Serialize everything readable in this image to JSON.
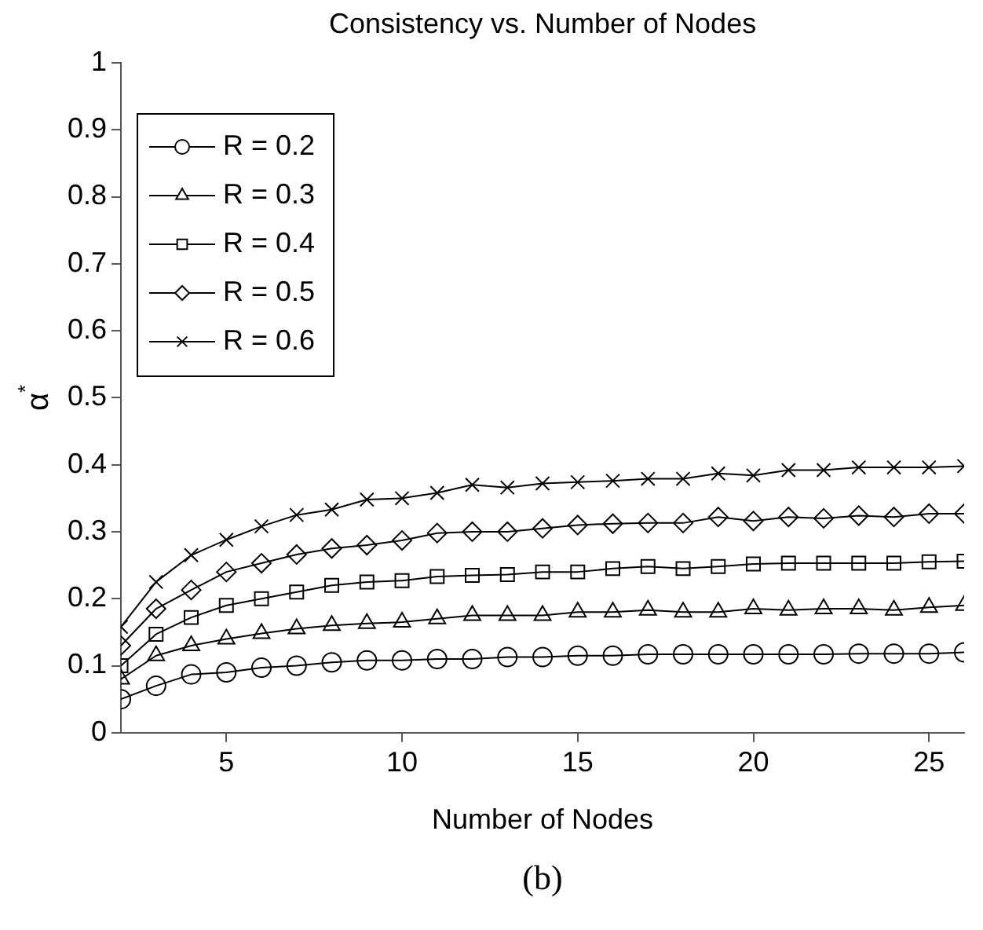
{
  "chart_data": {
    "type": "line",
    "title": "Consistency vs. Number of Nodes",
    "xlabel": "Number of Nodes",
    "ylabel": "α$^{*}$",
    "annotations": [
      "(b)"
    ],
    "x": [
      2,
      3,
      4,
      5,
      6,
      7,
      8,
      9,
      10,
      11,
      12,
      13,
      14,
      15,
      16,
      17,
      18,
      19,
      20,
      21,
      22,
      23,
      24,
      25,
      26
    ],
    "xlim": [
      2,
      26
    ],
    "xticks": [
      5,
      10,
      15,
      20,
      25
    ],
    "ylim": [
      0,
      1
    ],
    "yticks": [
      0,
      0.1,
      0.2,
      0.3,
      0.4,
      0.5,
      0.6,
      0.7,
      0.8,
      0.9,
      1
    ],
    "grid": false,
    "legend": "top left",
    "line_style": "solid",
    "series": [
      {
        "name": "R = 0.2",
        "color": "#000000",
        "marker": "circle",
        "values": [
          0.05,
          0.07,
          0.087,
          0.09,
          0.097,
          0.1,
          0.105,
          0.108,
          0.108,
          0.11,
          0.11,
          0.113,
          0.113,
          0.115,
          0.115,
          0.117,
          0.117,
          0.117,
          0.117,
          0.117,
          0.117,
          0.118,
          0.118,
          0.118,
          0.12
        ]
      },
      {
        "name": "R = 0.3",
        "color": "#000000",
        "marker": "triangle",
        "values": [
          0.08,
          0.115,
          0.13,
          0.14,
          0.148,
          0.155,
          0.16,
          0.163,
          0.165,
          0.17,
          0.175,
          0.175,
          0.175,
          0.18,
          0.18,
          0.183,
          0.18,
          0.18,
          0.185,
          0.183,
          0.185,
          0.185,
          0.183,
          0.187,
          0.19
        ]
      },
      {
        "name": "R = 0.4",
        "color": "#000000",
        "marker": "square",
        "values": [
          0.1,
          0.147,
          0.172,
          0.19,
          0.2,
          0.21,
          0.22,
          0.225,
          0.227,
          0.233,
          0.235,
          0.236,
          0.24,
          0.24,
          0.245,
          0.248,
          0.245,
          0.248,
          0.252,
          0.253,
          0.253,
          0.253,
          0.253,
          0.255,
          0.256
        ]
      },
      {
        "name": "R = 0.5",
        "color": "#000000",
        "marker": "diamond",
        "values": [
          0.13,
          0.185,
          0.213,
          0.24,
          0.253,
          0.266,
          0.275,
          0.28,
          0.287,
          0.298,
          0.3,
          0.3,
          0.305,
          0.31,
          0.312,
          0.313,
          0.313,
          0.322,
          0.316,
          0.322,
          0.32,
          0.324,
          0.322,
          0.327,
          0.327
        ]
      },
      {
        "name": "R = 0.6",
        "color": "#000000",
        "marker": "cross",
        "values": [
          0.158,
          0.225,
          0.265,
          0.288,
          0.308,
          0.325,
          0.333,
          0.348,
          0.35,
          0.358,
          0.37,
          0.366,
          0.372,
          0.374,
          0.376,
          0.379,
          0.379,
          0.387,
          0.384,
          0.392,
          0.392,
          0.396,
          0.396,
          0.396,
          0.398
        ]
      }
    ]
  }
}
